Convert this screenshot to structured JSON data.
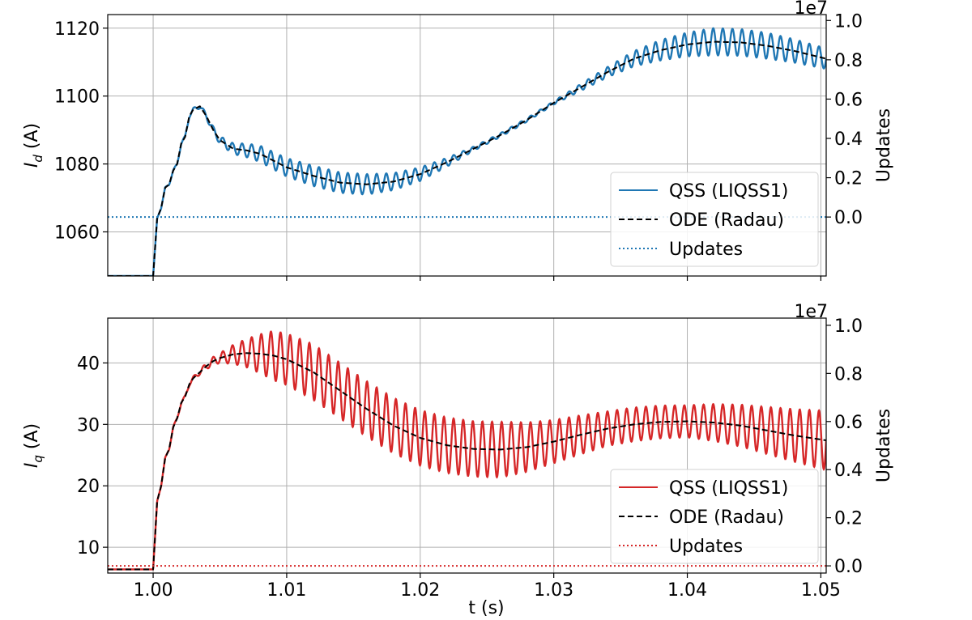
{
  "chart_data": [
    {
      "type": "line",
      "panel": "top",
      "ylabel_main": "I",
      "ylabel_sub": "d",
      "ylabel_unit": " (A)",
      "y2label": "Updates",
      "y2_offset_label": "1e7",
      "xlim": [
        0.9966,
        1.0504
      ],
      "ylim": [
        1047,
        1124
      ],
      "y2lim": [
        -0.3,
        1.03
      ],
      "yticks": [
        1060,
        1080,
        1100,
        1120
      ],
      "y2ticks": [
        "0.0",
        "0.2",
        "0.4",
        "0.6",
        "0.8",
        "1.0"
      ],
      "xticks": [
        1.0,
        1.01,
        1.02,
        1.03,
        1.04,
        1.05
      ],
      "grid": true,
      "legend_position": "lower-right",
      "colors": {
        "qss": "#1f77b4",
        "ode": "#000000",
        "updates": "#1f77b4"
      },
      "ode": {
        "name": "ODE (Radau)",
        "x": [
          0.9966,
          1.0,
          1.0003,
          1.0006,
          1.0009,
          1.0012,
          1.0015,
          1.0018,
          1.0021,
          1.0024,
          1.0027,
          1.003,
          1.0035,
          1.004,
          1.0045,
          1.005,
          1.006,
          1.007,
          1.008,
          1.009,
          1.01,
          1.012,
          1.014,
          1.016,
          1.018,
          1.02,
          1.022,
          1.024,
          1.026,
          1.028,
          1.03,
          1.032,
          1.034,
          1.036,
          1.038,
          1.04,
          1.042,
          1.044,
          1.046,
          1.048,
          1.0504
        ],
        "values": [
          1047,
          1047,
          1064,
          1067,
          1073,
          1074,
          1078,
          1080,
          1086,
          1088,
          1094,
          1096,
          1097,
          1094,
          1090,
          1087,
          1084.5,
          1084,
          1083,
          1081,
          1079,
          1076.5,
          1074.5,
          1074,
          1074.8,
          1077,
          1080.5,
          1084.5,
          1088.5,
          1093,
          1098,
          1102.5,
          1107,
          1111,
          1113.5,
          1115.2,
          1116,
          1115.8,
          1114.8,
          1113.3,
          1111
        ]
      },
      "qss": {
        "name": "QSS (LIQSS1)",
        "oscillation_amplitude": {
          "x": [
            1.0,
            1.003,
            1.005,
            1.008,
            1.012,
            1.016,
            1.02,
            1.024,
            1.03,
            1.034,
            1.038,
            1.042,
            1.046,
            1.0504
          ],
          "values": [
            0,
            0.5,
            1.2,
            2.4,
            3.0,
            3.0,
            2.0,
            0.6,
            0.5,
            1.5,
            3.0,
            4.0,
            3.8,
            3.0
          ]
        },
        "oscillation_period": 0.00072
      },
      "updates": {
        "name": "Updates",
        "value": 0.0
      }
    },
    {
      "type": "line",
      "panel": "bottom",
      "ylabel_main": "I",
      "ylabel_sub": "q",
      "ylabel_unit": " (A)",
      "y2label": "Updates",
      "y2_offset_label": "1e7",
      "xlabel": "t (s)",
      "xlim": [
        0.9966,
        1.0504
      ],
      "ylim": [
        5.8,
        47.3
      ],
      "y2lim": [
        -0.03,
        1.03
      ],
      "yticks": [
        10,
        20,
        30,
        40
      ],
      "y2ticks": [
        "0.0",
        "0.2",
        "0.4",
        "0.6",
        "0.8",
        "1.0"
      ],
      "xticks": [
        "1.00",
        "1.01",
        "1.02",
        "1.03",
        "1.04",
        "1.05"
      ],
      "grid": true,
      "legend_position": "lower-right",
      "colors": {
        "qss": "#d62728",
        "ode": "#000000",
        "updates": "#d62728"
      },
      "ode": {
        "name": "ODE (Radau)",
        "x": [
          0.9966,
          1.0,
          1.0003,
          1.0006,
          1.0009,
          1.0012,
          1.0015,
          1.0018,
          1.0021,
          1.0024,
          1.0027,
          1.003,
          1.0035,
          1.004,
          1.0045,
          1.005,
          1.006,
          1.007,
          1.008,
          1.009,
          1.01,
          1.012,
          1.014,
          1.016,
          1.018,
          1.02,
          1.022,
          1.024,
          1.026,
          1.028,
          1.03,
          1.032,
          1.034,
          1.036,
          1.038,
          1.04,
          1.042,
          1.044,
          1.046,
          1.048,
          1.0504
        ],
        "values": [
          6.4,
          6.4,
          17.5,
          20,
          24.5,
          26,
          29.5,
          31,
          33.5,
          34.5,
          36.5,
          37.5,
          38.5,
          39.5,
          40.3,
          40.8,
          41.4,
          41.6,
          41.5,
          41.2,
          40.6,
          38.5,
          35.5,
          32.5,
          29.8,
          27.8,
          26.6,
          26.0,
          25.9,
          26.3,
          27.2,
          28.3,
          29.3,
          30.0,
          30.4,
          30.5,
          30.3,
          29.8,
          29.0,
          28.2,
          27.4
        ]
      },
      "qss": {
        "name": "QSS (LIQSS1)",
        "oscillation_amplitude": {
          "x": [
            1.0,
            1.003,
            1.005,
            1.007,
            1.009,
            1.012,
            1.016,
            1.02,
            1.026,
            1.03,
            1.034,
            1.04,
            1.045,
            1.0504
          ],
          "values": [
            0,
            0.3,
            0.8,
            2.3,
            4.0,
            4.5,
            4.5,
            4.5,
            4.5,
            3.5,
            2.8,
            2.6,
            3.6,
            4.8
          ]
        },
        "oscillation_period": 0.00072
      },
      "updates": {
        "name": "Updates",
        "value": 0.0
      }
    }
  ]
}
